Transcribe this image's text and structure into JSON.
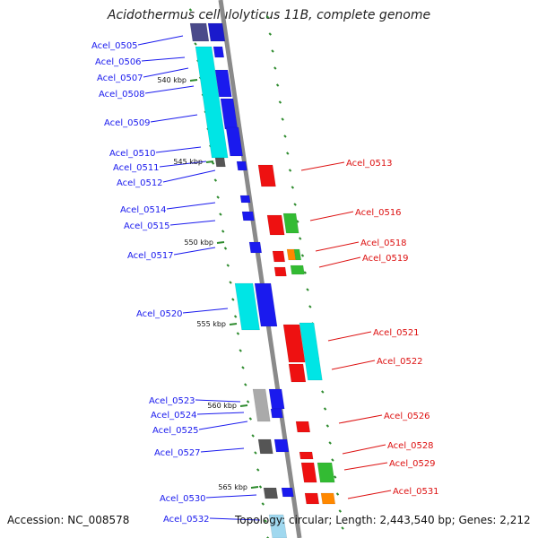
{
  "title": "Acidothermus cellulolyticus 11B, complete genome",
  "footer": {
    "accession": "Accession: NC_008578",
    "summary": "Topology: circular; Length: 2,443,540 bp; Genes: 2,212"
  },
  "colors": {
    "backbone": "#8a8a8a",
    "left_label": "#1a1aee",
    "right_label": "#dd1111",
    "tick": "#2e8b2e"
  },
  "kbp_markers": [
    "540 kbp",
    "545 kbp",
    "550 kbp",
    "555 kbp",
    "560 kbp",
    "565 kbp"
  ],
  "genes_left": [
    "Acel_0505",
    "Acel_0506",
    "Acel_0507",
    "Acel_0508",
    "Acel_0509",
    "Acel_0510",
    "Acel_0511",
    "Acel_0512",
    "Acel_0514",
    "Acel_0515",
    "Acel_0517",
    "Acel_0520",
    "Acel_0523",
    "Acel_0524",
    "Acel_0525",
    "Acel_0527",
    "Acel_0530",
    "Acel_0532"
  ],
  "genes_right": [
    "Acel_0513",
    "Acel_0516",
    "Acel_0518",
    "Acel_0519",
    "Acel_0521",
    "Acel_0522",
    "Acel_0526",
    "Acel_0528",
    "Acel_0529",
    "Acel_0531"
  ]
}
